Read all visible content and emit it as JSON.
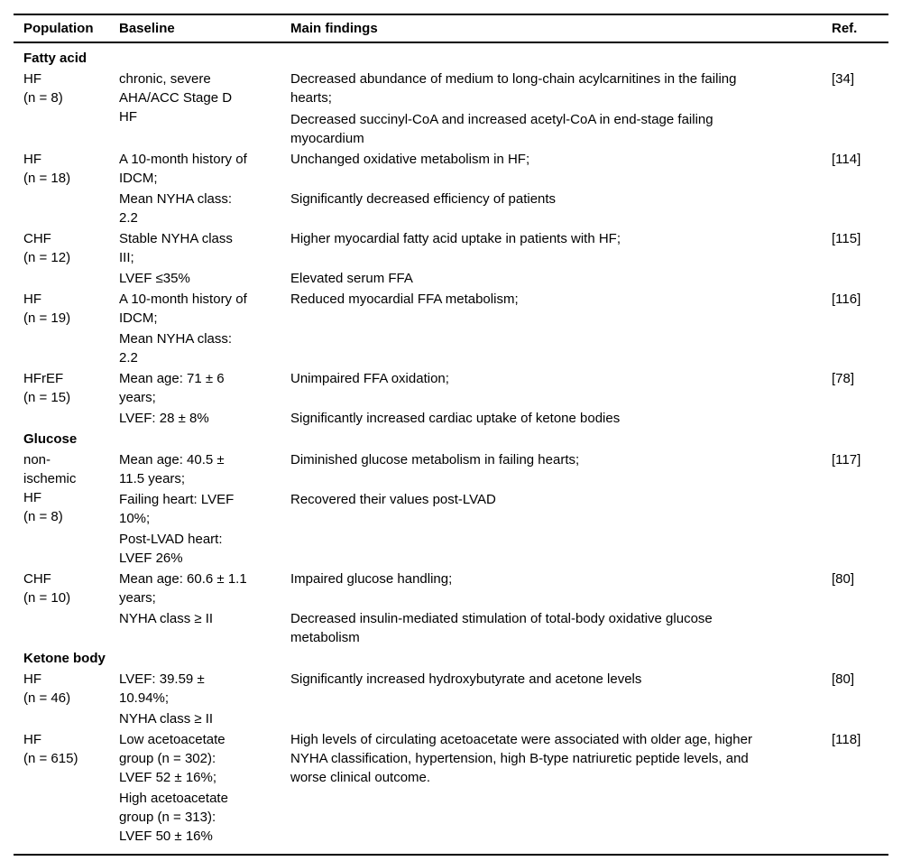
{
  "table": {
    "columns": [
      "Population",
      "Baseline",
      "Main findings",
      "Ref."
    ],
    "sections": [
      {
        "title": "Fatty acid",
        "rows": [
          {
            "population": "HF\n(n = 8)",
            "ref": "[34]",
            "subrows": [
              {
                "baseline": "chronic, severe\nAHA/ACC Stage D\nHF",
                "findings": [
                  "Decreased abundance of medium to long-chain acylcarnitines in the failing\nhearts;",
                  "Decreased succinyl-CoA and increased acetyl-CoA in end-stage failing\nmyocardium"
                ]
              }
            ]
          },
          {
            "population": "HF\n(n = 18)",
            "ref": "[114]",
            "subrows": [
              {
                "baseline": "A 10-month history of\nIDCM;",
                "findings": [
                  "Unchanged oxidative metabolism in HF;"
                ]
              },
              {
                "baseline": "Mean NYHA class:\n2.2",
                "findings": [
                  "Significantly decreased efficiency of patients"
                ]
              }
            ]
          },
          {
            "population": "CHF\n(n = 12)",
            "ref": "[115]",
            "subrows": [
              {
                "baseline": "Stable NYHA class\nIII;",
                "findings": [
                  "Higher myocardial fatty acid uptake in patients with HF;"
                ]
              },
              {
                "baseline": "LVEF ≤35%",
                "findings": [
                  "Elevated serum FFA"
                ]
              }
            ]
          },
          {
            "population": "HF\n(n = 19)",
            "ref": "[116]",
            "subrows": [
              {
                "baseline": "A 10-month history of\nIDCM;",
                "findings": [
                  "Reduced myocardial FFA metabolism;"
                ]
              },
              {
                "baseline": "Mean NYHA class:\n2.2",
                "findings": []
              }
            ]
          },
          {
            "population": "HFrEF\n(n = 15)",
            "ref": "[78]",
            "subrows": [
              {
                "baseline": "Mean age: 71 ± 6\nyears;",
                "findings": [
                  "Unimpaired FFA oxidation;"
                ]
              },
              {
                "baseline": "LVEF: 28 ± 8%",
                "findings": [
                  "Significantly increased cardiac uptake of ketone bodies"
                ]
              }
            ]
          }
        ]
      },
      {
        "title": "Glucose",
        "rows": [
          {
            "population": "non-\nischemic\nHF\n(n = 8)",
            "ref": "[117]",
            "subrows": [
              {
                "baseline": "Mean age: 40.5 ±\n11.5 years;",
                "findings": [
                  "Diminished glucose metabolism in failing hearts;"
                ]
              },
              {
                "baseline": "Failing heart: LVEF\n10%;",
                "findings": [
                  "Recovered their values post-LVAD"
                ]
              },
              {
                "baseline": "Post-LVAD heart:\nLVEF 26%",
                "findings": []
              }
            ]
          },
          {
            "population": "CHF\n(n = 10)",
            "ref": "[80]",
            "subrows": [
              {
                "baseline": "Mean age: 60.6 ± 1.1\nyears;",
                "findings": [
                  "Impaired glucose handling;"
                ]
              },
              {
                "baseline": "NYHA class ≥ II",
                "findings": [
                  "Decreased insulin-mediated stimulation of total-body oxidative glucose\nmetabolism"
                ]
              }
            ]
          }
        ]
      },
      {
        "title": "Ketone body",
        "rows": [
          {
            "population": "HF\n(n = 46)",
            "ref": "[80]",
            "subrows": [
              {
                "baseline": "LVEF: 39.59 ±\n10.94%;",
                "findings": [
                  "Significantly increased hydroxybutyrate and acetone levels"
                ]
              },
              {
                "baseline": "NYHA class ≥ II",
                "findings": []
              }
            ]
          },
          {
            "population": "HF\n(n = 615)",
            "ref": "[118]",
            "subrows": [
              {
                "baseline": "Low acetoacetate\ngroup (n = 302):\nLVEF 52 ± 16%;",
                "findings": [
                  "High levels of circulating acetoacetate were associated with older age, higher\nNYHA classification, hypertension, high B-type natriuretic peptide levels, and\nworse clinical outcome."
                ]
              },
              {
                "baseline": "High acetoacetate\ngroup (n = 313):\nLVEF 50 ± 16%",
                "findings": []
              }
            ]
          }
        ]
      }
    ]
  }
}
